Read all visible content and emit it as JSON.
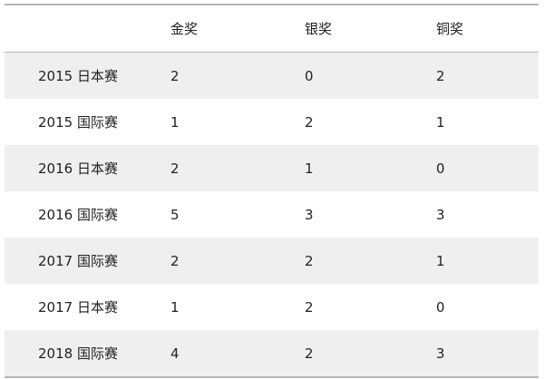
{
  "table": {
    "headers": [
      "",
      "金奖",
      "银奖",
      "铜奖"
    ],
    "rows": [
      [
        "2015 日本赛",
        "2",
        "0",
        "2"
      ],
      [
        "2015 国际赛",
        "1",
        "2",
        "1"
      ],
      [
        "2016 日本赛",
        "2",
        "1",
        "0"
      ],
      [
        "2016 国际赛",
        "5",
        "3",
        "3"
      ],
      [
        "2017 国际赛",
        "2",
        "2",
        "1"
      ],
      [
        "2017 日本赛",
        "1",
        "2",
        "0"
      ],
      [
        "2018 国际赛",
        "4",
        "2",
        "3"
      ]
    ]
  }
}
